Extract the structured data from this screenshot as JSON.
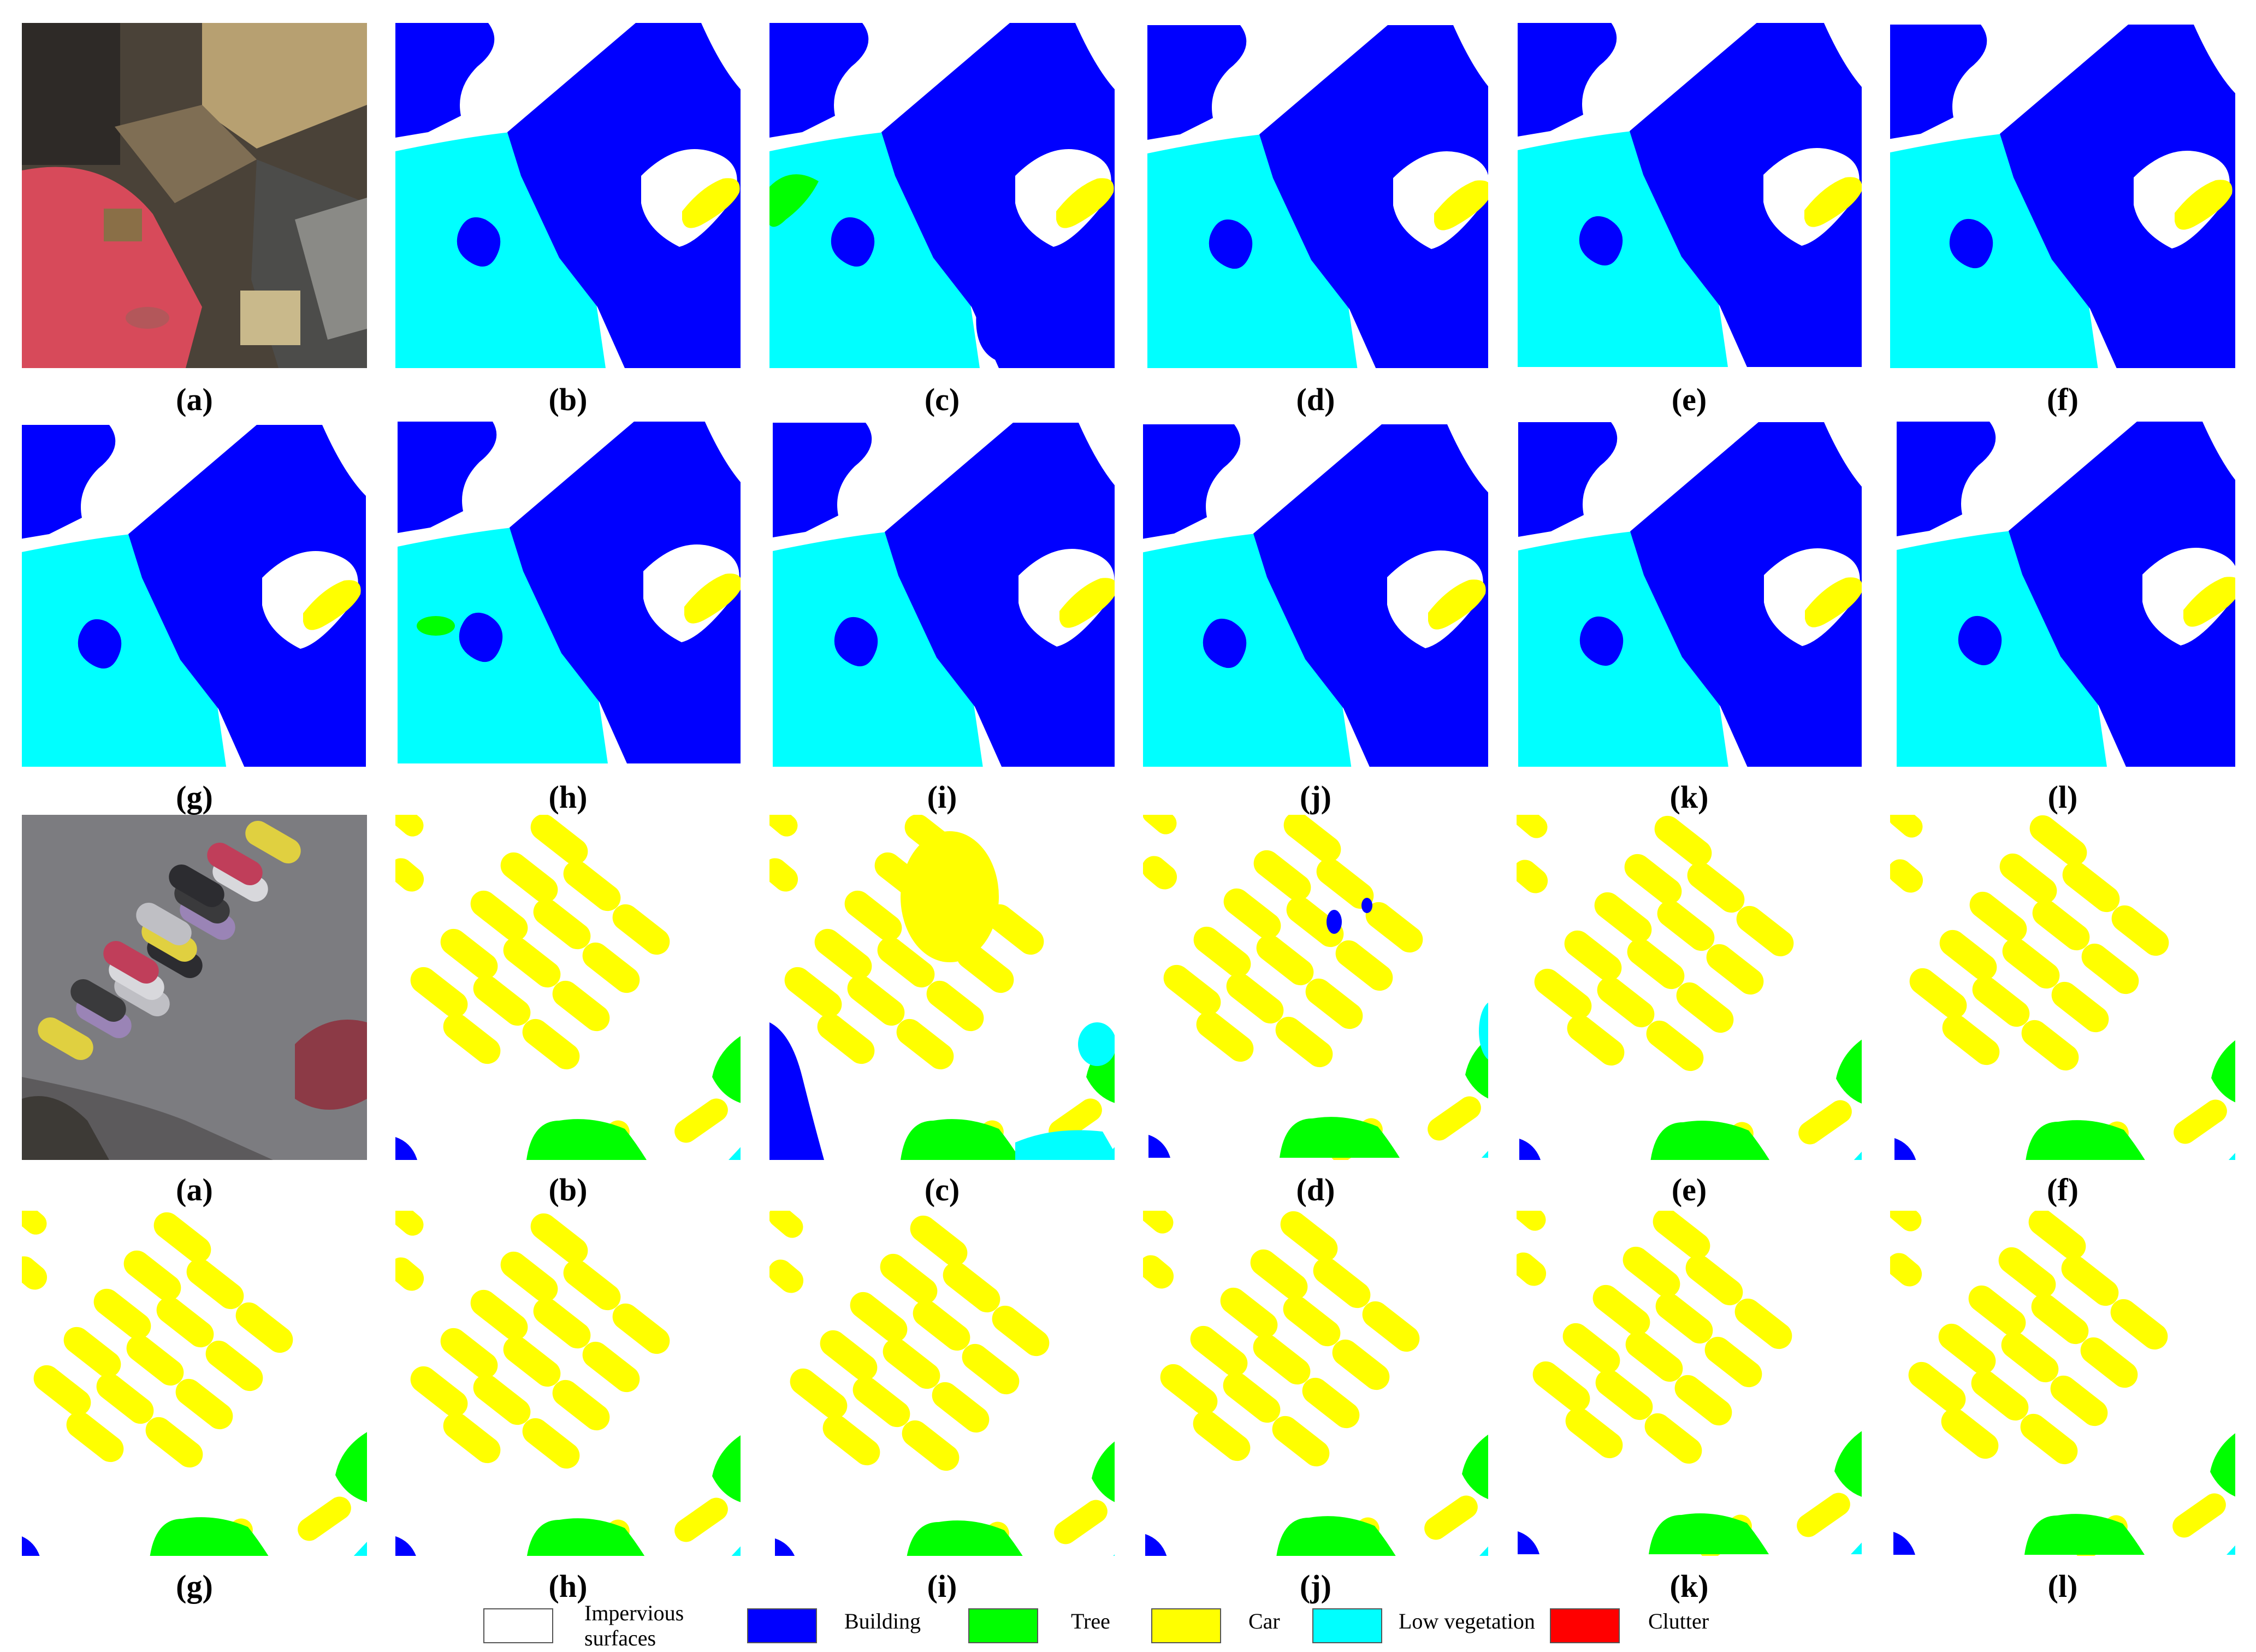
{
  "colors": {
    "impervious": "#ffffff",
    "building": "#0000ff",
    "tree": "#00ff00",
    "car": "#ffff00",
    "low_vegetation": "#00ffff",
    "clutter": "#ff0000"
  },
  "captions": [
    "(a)",
    "(b)",
    "(c)",
    "(d)",
    "(e)",
    "(f)",
    "(g)",
    "(h)",
    "(i)",
    "(j)",
    "(k)",
    "(l)"
  ],
  "legend": [
    {
      "label": "Impervious surfaces",
      "color": "#ffffff"
    },
    {
      "label": "Building",
      "color": "#0000ff"
    },
    {
      "label": "Tree",
      "color": "#00ff00"
    },
    {
      "label": "Car",
      "color": "#ffff00"
    },
    {
      "label": "Low vegetation",
      "color": "#00ffff"
    },
    {
      "label": "Clutter",
      "color": "#ff0000"
    }
  ]
}
